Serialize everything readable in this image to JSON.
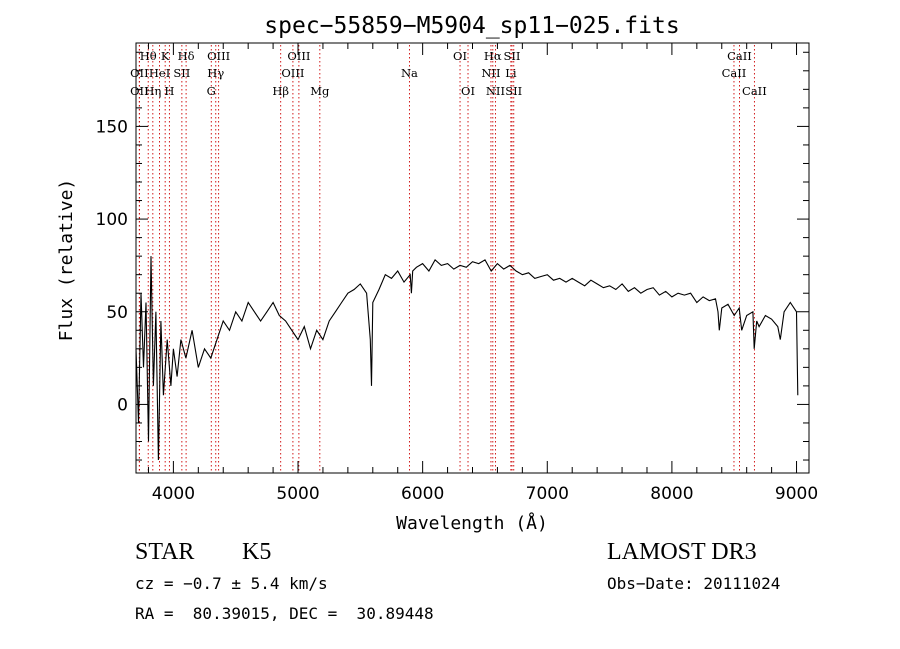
{
  "chart_data": {
    "type": "line",
    "title": "spec−55859−M5904_sp11−025.fits",
    "xlabel": "Wavelength (Å)",
    "ylabel": "Flux (relative)",
    "xlim": [
      3700,
      9100
    ],
    "ylim": [
      -37,
      195
    ],
    "x_ticks": [
      4000,
      5000,
      6000,
      7000,
      8000,
      9000
    ],
    "y_ticks": [
      0,
      50,
      100,
      150
    ],
    "series": [
      {
        "name": "flux",
        "x": [
          3700,
          3720,
          3740,
          3760,
          3780,
          3800,
          3820,
          3840,
          3860,
          3880,
          3900,
          3920,
          3950,
          3980,
          4000,
          4030,
          4060,
          4100,
          4150,
          4200,
          4250,
          4300,
          4350,
          4400,
          4450,
          4500,
          4550,
          4600,
          4650,
          4700,
          4750,
          4800,
          4850,
          4900,
          4950,
          5000,
          5050,
          5100,
          5150,
          5200,
          5250,
          5300,
          5350,
          5400,
          5450,
          5500,
          5550,
          5580,
          5590,
          5600,
          5650,
          5700,
          5750,
          5800,
          5850,
          5900,
          5910,
          5920,
          5950,
          6000,
          6050,
          6100,
          6150,
          6200,
          6250,
          6300,
          6350,
          6400,
          6450,
          6500,
          6550,
          6600,
          6650,
          6700,
          6750,
          6800,
          6850,
          6900,
          6950,
          7000,
          7050,
          7100,
          7150,
          7200,
          7250,
          7300,
          7350,
          7400,
          7450,
          7500,
          7550,
          7600,
          7650,
          7700,
          7750,
          7800,
          7850,
          7900,
          7950,
          8000,
          8050,
          8100,
          8150,
          8200,
          8250,
          8300,
          8350,
          8370,
          8380,
          8400,
          8450,
          8500,
          8540,
          8560,
          8600,
          8650,
          8660,
          8680,
          8700,
          8750,
          8800,
          8850,
          8870,
          8900,
          8950,
          9000,
          9010
        ],
        "y": [
          30,
          -10,
          60,
          20,
          55,
          -20,
          80,
          10,
          50,
          -30,
          45,
          5,
          35,
          10,
          30,
          15,
          35,
          25,
          40,
          20,
          30,
          25,
          35,
          45,
          40,
          50,
          45,
          55,
          50,
          45,
          50,
          55,
          48,
          45,
          40,
          35,
          42,
          30,
          40,
          35,
          45,
          50,
          55,
          60,
          62,
          65,
          60,
          35,
          10,
          55,
          62,
          70,
          68,
          72,
          66,
          70,
          60,
          72,
          74,
          76,
          72,
          78,
          75,
          76,
          73,
          75,
          74,
          77,
          76,
          78,
          72,
          76,
          73,
          75,
          72,
          70,
          71,
          68,
          69,
          70,
          67,
          68,
          66,
          68,
          66,
          64,
          67,
          65,
          63,
          64,
          62,
          65,
          61,
          63,
          60,
          62,
          63,
          59,
          61,
          58,
          60,
          59,
          60,
          55,
          58,
          56,
          57,
          50,
          40,
          52,
          54,
          48,
          52,
          40,
          48,
          50,
          30,
          45,
          42,
          48,
          46,
          42,
          35,
          50,
          55,
          50,
          5
        ],
        "color": "#000000"
      }
    ],
    "line_markers": [
      {
        "label": "Hθ",
        "x": 3798,
        "row": 0,
        "color": "#cc0000"
      },
      {
        "label": "Hη",
        "x": 3835,
        "row": 2,
        "color": "#cc0000"
      },
      {
        "label": "OII",
        "x": 3727,
        "row": 1,
        "color": "#cc0000"
      },
      {
        "label": "OII",
        "x": 3727,
        "row": 2,
        "color": "#cc0000"
      },
      {
        "label": "HeI",
        "x": 3889,
        "row": 1,
        "color": "#cc0000"
      },
      {
        "label": "K",
        "x": 3934,
        "row": 0,
        "color": "#cc0000"
      },
      {
        "label": "H",
        "x": 3968,
        "row": 2,
        "color": "#cc0000"
      },
      {
        "label": "SII",
        "x": 4068,
        "row": 1,
        "color": "#cc0000"
      },
      {
        "label": "Hδ",
        "x": 4102,
        "row": 0,
        "color": "#cc0000"
      },
      {
        "label": "G",
        "x": 4304,
        "row": 2,
        "color": "#cc0000"
      },
      {
        "label": "Hγ",
        "x": 4340,
        "row": 1,
        "color": "#cc0000"
      },
      {
        "label": "OIII",
        "x": 4363,
        "row": 0,
        "color": "#cc0000"
      },
      {
        "label": "Hβ",
        "x": 4861,
        "row": 2,
        "color": "#cc0000"
      },
      {
        "label": "OIII",
        "x": 4959,
        "row": 1,
        "color": "#cc0000"
      },
      {
        "label": "OIII",
        "x": 5007,
        "row": 0,
        "color": "#cc0000"
      },
      {
        "label": "Mg",
        "x": 5175,
        "row": 2,
        "color": "#cc0000"
      },
      {
        "label": "Na",
        "x": 5894,
        "row": 1,
        "color": "#cc0000"
      },
      {
        "label": "OI",
        "x": 6300,
        "row": 0,
        "color": "#cc0000"
      },
      {
        "label": "OI",
        "x": 6364,
        "row": 2,
        "color": "#cc0000"
      },
      {
        "label": "Hα",
        "x": 6563,
        "row": 0,
        "color": "#cc0000"
      },
      {
        "label": "NII",
        "x": 6548,
        "row": 1,
        "color": "#cc0000"
      },
      {
        "label": "NII",
        "x": 6584,
        "row": 2,
        "color": "#cc0000"
      },
      {
        "label": "Li",
        "x": 6708,
        "row": 1,
        "color": "#cc0000"
      },
      {
        "label": "SII",
        "x": 6717,
        "row": 0,
        "color": "#cc0000"
      },
      {
        "label": "SII",
        "x": 6731,
        "row": 2,
        "color": "#cc0000"
      },
      {
        "label": "CaII",
        "x": 8498,
        "row": 1,
        "color": "#cc0000"
      },
      {
        "label": "CaII",
        "x": 8542,
        "row": 0,
        "color": "#cc0000"
      },
      {
        "label": "CaII",
        "x": 8662,
        "row": 2,
        "color": "#cc0000"
      }
    ]
  },
  "info": {
    "class_label": "STAR",
    "subclass": "K5",
    "survey": "LAMOST DR3",
    "cz": "cz = −0.7 ± 5.4 km/s",
    "obs_date": "Obs−Date: 20111024",
    "coords": "RA =  80.39015, DEC =  30.89448"
  }
}
